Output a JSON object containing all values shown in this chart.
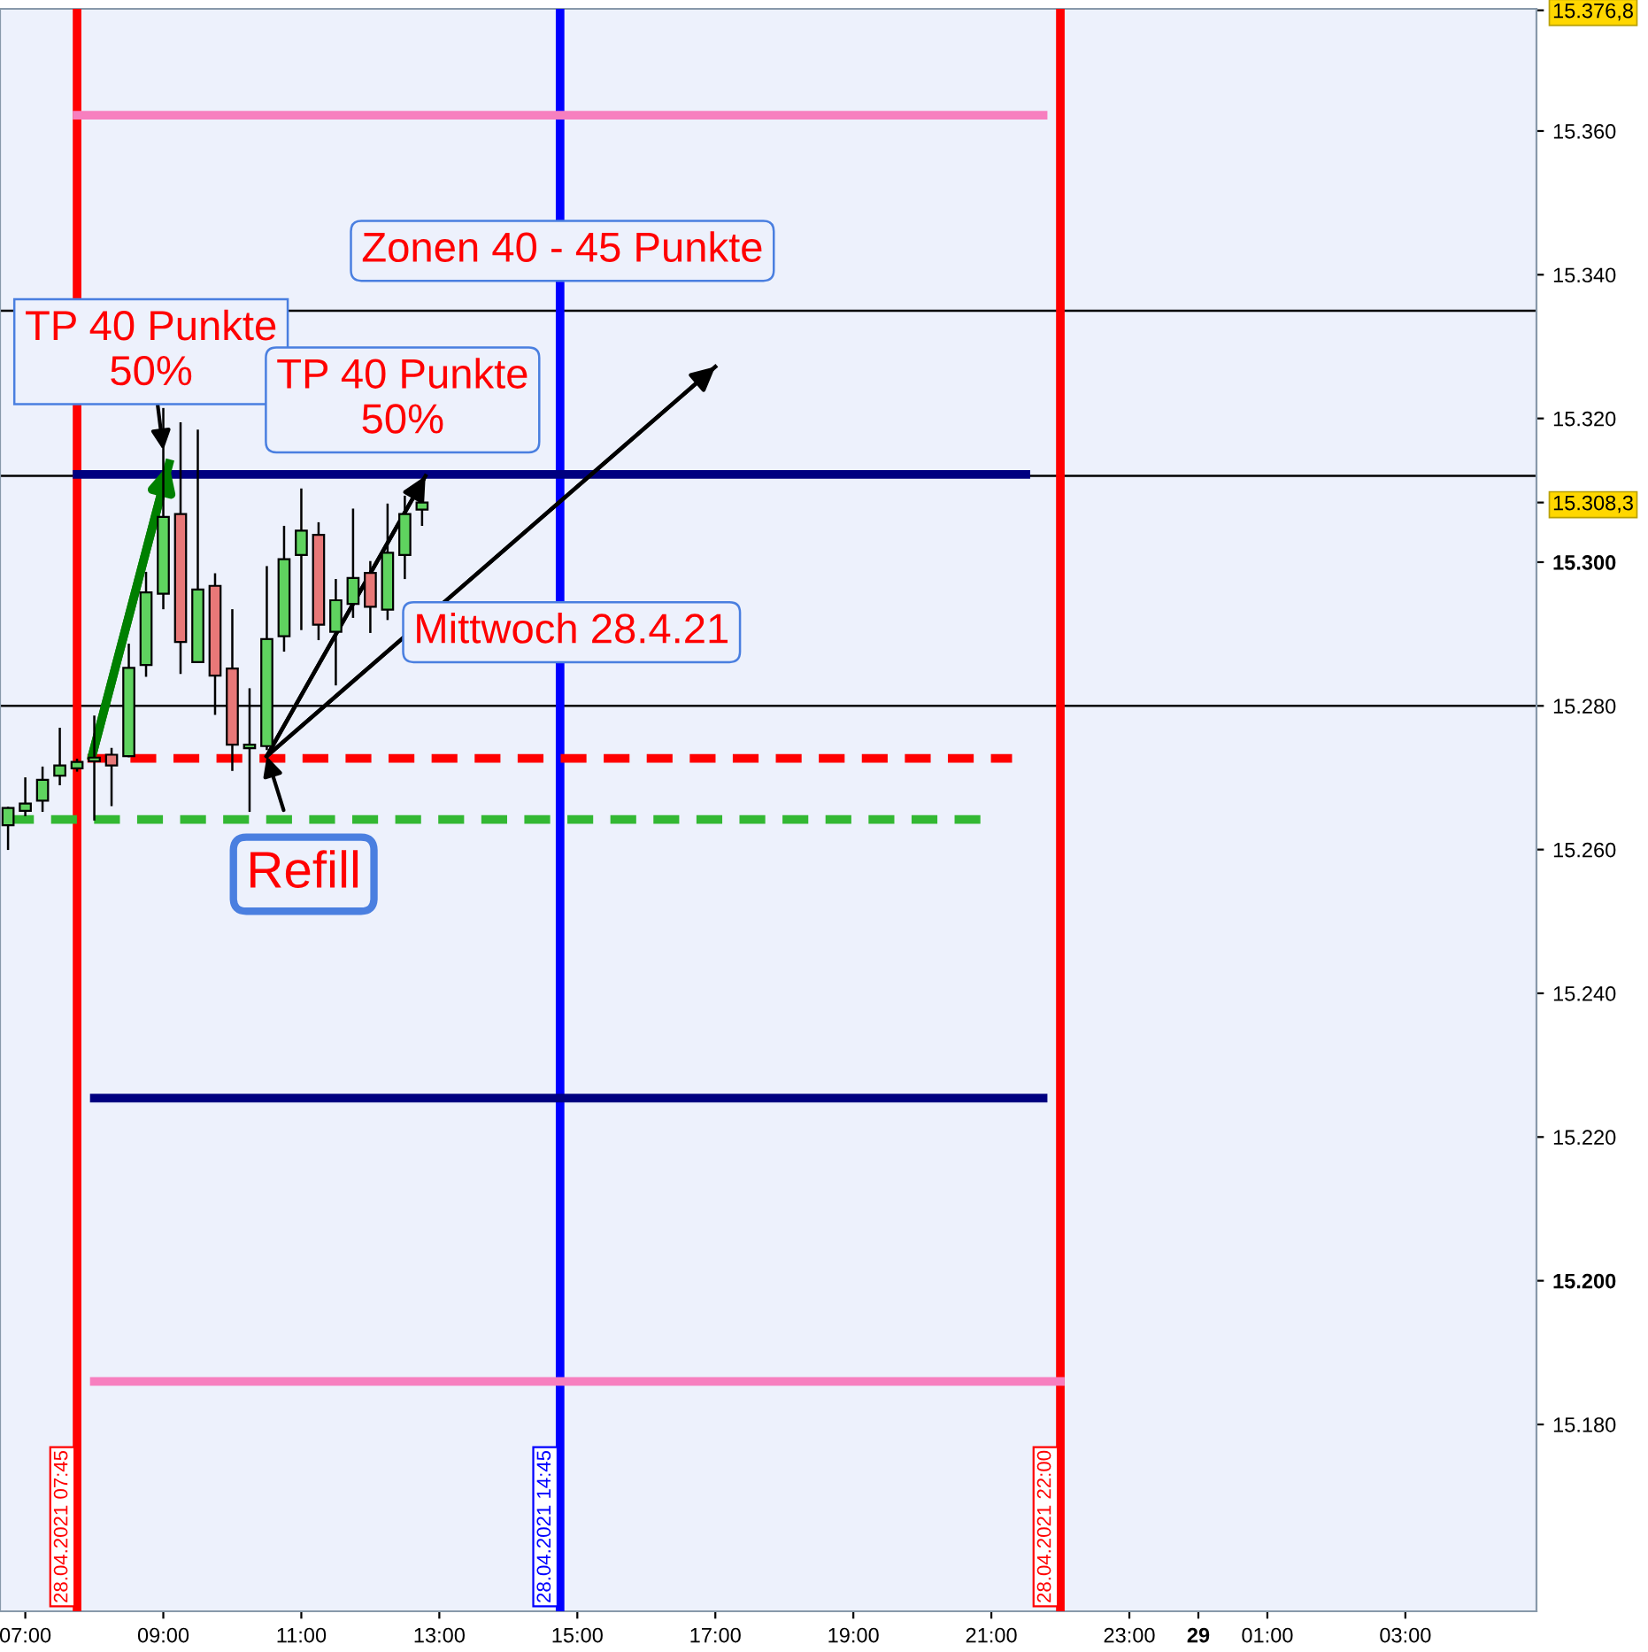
{
  "chart_data": {
    "type": "candlestick",
    "x": [
      "2021-04-28T06:45",
      "2021-04-28T07:00",
      "2021-04-28T07:15",
      "2021-04-28T07:30",
      "2021-04-28T07:45",
      "2021-04-28T08:00",
      "2021-04-28T08:15",
      "2021-04-28T08:30",
      "2021-04-28T08:45",
      "2021-04-28T09:00",
      "2021-04-28T09:15",
      "2021-04-28T09:30",
      "2021-04-28T09:45",
      "2021-04-28T10:00",
      "2021-04-28T10:15",
      "2021-04-28T10:30",
      "2021-04-28T10:45",
      "2021-04-28T11:00",
      "2021-04-28T11:15",
      "2021-04-28T11:30",
      "2021-04-28T11:45",
      "2021-04-28T12:00",
      "2021-04-28T12:15",
      "2021-04-28T12:30",
      "2021-04-28T12:45"
    ],
    "ohlc": [
      [
        15263.4,
        15265.8,
        15260.1,
        15265.8
      ],
      [
        15265.4,
        15269.9,
        15264.8,
        15266.4
      ],
      [
        15266.8,
        15271.4,
        15265.4,
        15269.7
      ],
      [
        15270.3,
        15276.8,
        15269.1,
        15271.7
      ],
      [
        15271.3,
        15272.5,
        15271.0,
        15272.2
      ],
      [
        15272.3,
        15278.5,
        15264.2,
        15272.8
      ],
      [
        15273.2,
        15274.0,
        15266.2,
        15271.7
      ],
      [
        15273.0,
        15288.5,
        15273.0,
        15285.3
      ],
      [
        15285.7,
        15298.5,
        15284.2,
        15295.8
      ],
      [
        15295.6,
        15321.3,
        15293.6,
        15306.3
      ],
      [
        15306.7,
        15319.3,
        15284.6,
        15288.9
      ],
      [
        15286.1,
        15318.3,
        15286.1,
        15296.2
      ],
      [
        15296.7,
        15298.3,
        15278.9,
        15284.2
      ],
      [
        15285.2,
        15293.3,
        15271.1,
        15274.6
      ],
      [
        15274.1,
        15282.3,
        15265.4,
        15274.6
      ],
      [
        15274.4,
        15299.3,
        15274.0,
        15289.3
      ],
      [
        15289.7,
        15304.9,
        15287.7,
        15300.4
      ],
      [
        15301.0,
        15310.1,
        15290.7,
        15304.4
      ],
      [
        15303.8,
        15305.4,
        15289.3,
        15291.3
      ],
      [
        15290.3,
        15297.5,
        15283.0,
        15294.7
      ],
      [
        15294.2,
        15307.3,
        15292.4,
        15297.8
      ],
      [
        15298.5,
        15300.0,
        15290.3,
        15293.8
      ],
      [
        15293.4,
        15308.0,
        15292.1,
        15301.3
      ],
      [
        15301.0,
        15309.1,
        15297.8,
        15306.7
      ],
      [
        15307.3,
        15309.3,
        15305.2,
        15308.3
      ]
    ],
    "colors": [
      "#5fd35f",
      "#5fd35f",
      "#5fd35f",
      "#5fd35f",
      "#5fd35f",
      "#5fd35f",
      "#e87878",
      "#5fd35f",
      "#5fd35f",
      "#5fd35f",
      "#e87878",
      "#5fd35f",
      "#e87878",
      "#e87878",
      "#5fd35f",
      "#5fd35f",
      "#5fd35f",
      "#5fd35f",
      "#e87878",
      "#5fd35f",
      "#5fd35f",
      "#e87878",
      "#5fd35f",
      "#5fd35f",
      "#5fd35f"
    ],
    "series": [
      {
        "type": "line",
        "x": [
          "2021-04-28T07:45",
          "2021-04-28T21:45"
        ],
        "values": [
          15362.2,
          15362.2
        ],
        "color": "#f77fbf",
        "line_style": "solid"
      },
      {
        "type": "line",
        "x": [
          "2021-04-28T07:45",
          "2021-04-28T21:30"
        ],
        "values": [
          15312.2,
          15312.2
        ],
        "color": "#000080",
        "line_style": "solid"
      },
      {
        "type": "line",
        "x": [
          "2021-04-28T07:54",
          "2021-04-28T21:18"
        ],
        "values": [
          15272.7,
          15272.7
        ],
        "color": "#ff0000",
        "line_style": "dashed"
      },
      {
        "type": "line",
        "x": [
          "2021-04-28T06:45",
          "2021-04-28T20:57"
        ],
        "values": [
          15264.2,
          15264.2
        ],
        "color": "#33b833",
        "line_style": "dashed"
      },
      {
        "type": "line",
        "x": [
          "2021-04-28T08:00",
          "2021-04-28T21:45"
        ],
        "values": [
          15225.4,
          15225.4
        ],
        "color": "#000080",
        "line_style": "solid"
      },
      {
        "type": "line",
        "x": [
          "2021-04-28T08:00",
          "2021-04-28T22:00"
        ],
        "values": [
          15186.0,
          15186.0
        ],
        "color": "#f77fbf",
        "line_style": "solid"
      },
      {
        "type": "line",
        "x": [
          "2021-04-28T07:58",
          "2021-04-28T09:05"
        ],
        "values": [
          15273.0,
          15313.7
        ],
        "color": "#008000",
        "line_style": "solid"
      },
      {
        "type": "line",
        "x": [
          "2021-04-28T10:30",
          "2021-04-28T12:48"
        ],
        "values": [
          15273.0,
          15312.0
        ],
        "color": "#000000",
        "line_style": "solid"
      },
      {
        "type": "line",
        "x": [
          "2021-04-28T10:30",
          "2021-04-28T17:00"
        ],
        "values": [
          15273.0,
          15327.2
        ],
        "color": "#000000",
        "line_style": "solid"
      }
    ],
    "ref_lines": [
      {
        "axis": "y",
        "value": 15335,
        "color": "#000000"
      },
      {
        "axis": "y",
        "value": 15312,
        "color": "#000000"
      },
      {
        "axis": "y",
        "value": 15280,
        "color": "#000000"
      },
      {
        "axis": "x",
        "value": "2021-04-28T07:45",
        "label": "28.04.2021 07:45",
        "color": "#ff0000"
      },
      {
        "axis": "x",
        "value": "2021-04-28T14:45",
        "label": "28.04.2021 14:45",
        "color": "#0000ff"
      },
      {
        "axis": "x",
        "value": "2021-04-28T22:00",
        "label": "28.04.2021 22:00",
        "color": "#ff0000"
      }
    ],
    "annotations": [
      "Zonen 40 - 45 Punkte",
      {
        "text": "TP 40 Punkte\n50%",
        "x": "2021-04-28T09:00",
        "y": 15315.6
      },
      "TP 40 Punkte\n50%",
      "Mittwoch 28.4.21",
      {
        "text": "Refill",
        "x": "2021-04-28T10:30",
        "y": 15273.0
      }
    ],
    "xlim": [
      "2021-04-28T06:38",
      "2021-04-29T04:54"
    ],
    "ylim": [
      15154,
      15377
    ],
    "xticks": [
      {
        "value": "2021-04-28T07:00",
        "label": "07:00"
      },
      {
        "value": "2021-04-28T09:00",
        "label": "09:00"
      },
      {
        "value": "2021-04-28T11:00",
        "label": "11:00"
      },
      {
        "value": "2021-04-28T13:00",
        "label": "13:00"
      },
      {
        "value": "2021-04-28T15:00",
        "label": "15:00"
      },
      {
        "value": "2021-04-28T17:00",
        "label": "17:00"
      },
      {
        "value": "2021-04-28T19:00",
        "label": "19:00"
      },
      {
        "value": "2021-04-28T21:00",
        "label": "21:00"
      },
      {
        "value": "2021-04-28T23:00",
        "label": "23:00"
      },
      {
        "value": "2021-04-29T00:00",
        "label": "29"
      },
      {
        "value": "2021-04-29T01:00",
        "label": "01:00"
      },
      {
        "value": "2021-04-29T03:00",
        "label": "03:00"
      }
    ],
    "yticks": [
      {
        "value": 15180,
        "label": "15.180"
      },
      {
        "value": 15200,
        "label": "15.200"
      },
      {
        "value": 15220,
        "label": "15.220"
      },
      {
        "value": 15240,
        "label": "15.240"
      },
      {
        "value": 15260,
        "label": "15.260"
      },
      {
        "value": 15280,
        "label": "15.280"
      },
      {
        "value": 15300,
        "label": "15.300"
      },
      {
        "value": 15308.3,
        "label": "15.308,3"
      },
      {
        "value": 15320,
        "label": "15.320"
      },
      {
        "value": 15340,
        "label": "15.340"
      },
      {
        "value": 15360,
        "label": "15.360"
      },
      {
        "value": 15376.8,
        "label": "15.376,8"
      }
    ],
    "grid": false,
    "legend": false
  }
}
